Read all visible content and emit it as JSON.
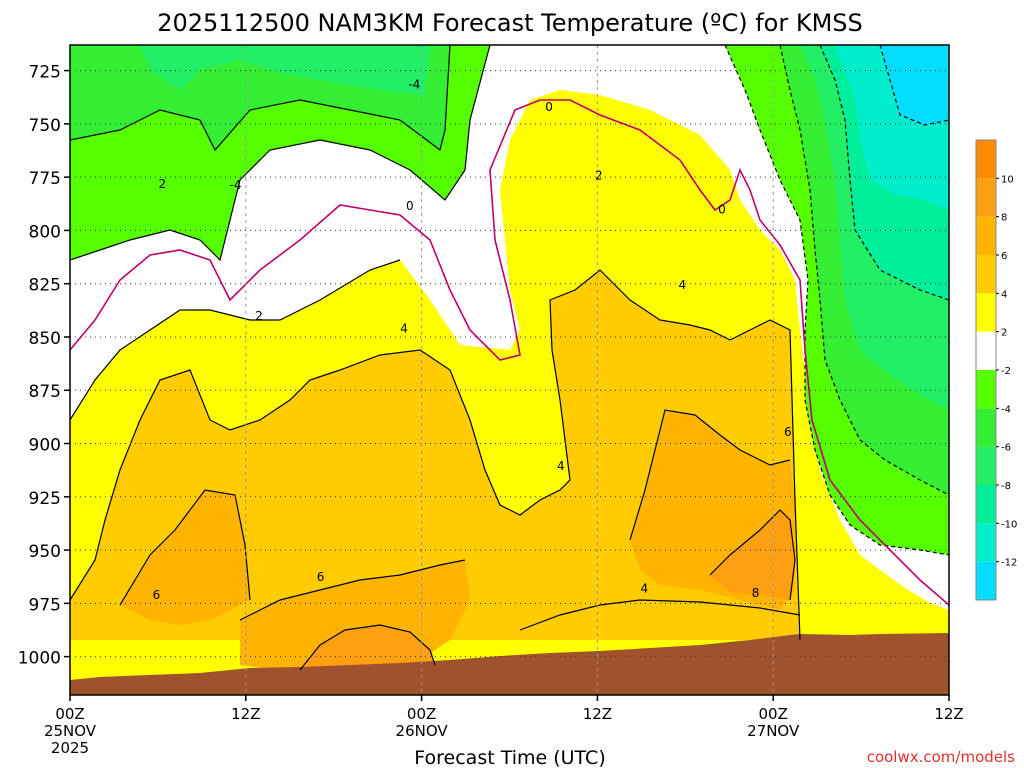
{
  "chart_data": {
    "type": "heatmap",
    "title": "2025112500 NAM3KM Forecast Temperature (ºC) for KMSS",
    "xlabel": "Forecast Time (UTC)",
    "ylabel": "",
    "x_ticks": [
      {
        "hour": 0,
        "label": "00Z",
        "sub": "25NOV",
        "sub2": "2025"
      },
      {
        "hour": 12,
        "label": "12Z",
        "sub": "",
        "sub2": ""
      },
      {
        "hour": 24,
        "label": "00Z",
        "sub": "26NOV",
        "sub2": ""
      },
      {
        "hour": 36,
        "label": "12Z",
        "sub": "",
        "sub2": ""
      },
      {
        "hour": 48,
        "label": "00Z",
        "sub": "27NOV",
        "sub2": ""
      },
      {
        "hour": 60,
        "label": "12Z",
        "sub": "",
        "sub2": ""
      }
    ],
    "y_ticks": [
      "725",
      "750",
      "775",
      "800",
      "825",
      "850",
      "875",
      "900",
      "925",
      "950",
      "975",
      "1000"
    ],
    "y_axis_unit": "hPa",
    "ylim": [
      1018,
      713
    ],
    "xlim": [
      0,
      60
    ],
    "grid": true,
    "colorbar": {
      "labels": [
        "10",
        "8",
        "6",
        "4",
        "2",
        "-2",
        "-4",
        "-6",
        "-8",
        "-10",
        "-12"
      ],
      "bands": [
        {
          "min": 10,
          "max": 12,
          "color": "#ff8c00"
        },
        {
          "min": 8,
          "max": 10,
          "color": "#ffa010"
        },
        {
          "min": 6,
          "max": 8,
          "color": "#ffb400"
        },
        {
          "min": 4,
          "max": 6,
          "color": "#ffcc00"
        },
        {
          "min": 2,
          "max": 4,
          "color": "#ffff00"
        },
        {
          "min": -2,
          "max": 2,
          "color": "#ffffff"
        },
        {
          "min": -4,
          "max": -2,
          "color": "#55ff00"
        },
        {
          "min": -6,
          "max": -4,
          "color": "#33ee33"
        },
        {
          "min": -8,
          "max": -6,
          "color": "#22ee66"
        },
        {
          "min": -10,
          "max": -8,
          "color": "#00ee99"
        },
        {
          "min": -12,
          "max": -10,
          "color": "#00eecc"
        },
        {
          "min": -14,
          "max": -12,
          "color": "#00ddff"
        }
      ]
    },
    "contour_labels": [
      {
        "hour": 6.3,
        "p": 780.0,
        "text": "2"
      },
      {
        "hour": 11.3,
        "p": 780.5,
        "text": "-4"
      },
      {
        "hour": 23.5,
        "p": 733.5,
        "text": "-4"
      },
      {
        "hour": 32.7,
        "p": 744.0,
        "text": "0"
      },
      {
        "hour": 36.1,
        "p": 776.0,
        "text": "2"
      },
      {
        "hour": 23.2,
        "p": 790.5,
        "text": "0"
      },
      {
        "hour": 44.5,
        "p": 792.0,
        "text": "0"
      },
      {
        "hour": 12.9,
        "p": 842.0,
        "text": "2"
      },
      {
        "hour": 22.8,
        "p": 848.0,
        "text": "4"
      },
      {
        "hour": 41.8,
        "p": 827.5,
        "text": "4"
      },
      {
        "hour": 49.0,
        "p": 896.5,
        "text": "6"
      },
      {
        "hour": 33.5,
        "p": 912.5,
        "text": "4"
      },
      {
        "hour": 17.1,
        "p": 964.5,
        "text": "6"
      },
      {
        "hour": 5.9,
        "p": 973.0,
        "text": "6"
      },
      {
        "hour": 39.2,
        "p": 970.0,
        "text": "4"
      },
      {
        "hour": 46.8,
        "p": 972.0,
        "text": "8"
      }
    ],
    "ground_color": "#a0522d"
  },
  "credit": "coolwx.com/models"
}
